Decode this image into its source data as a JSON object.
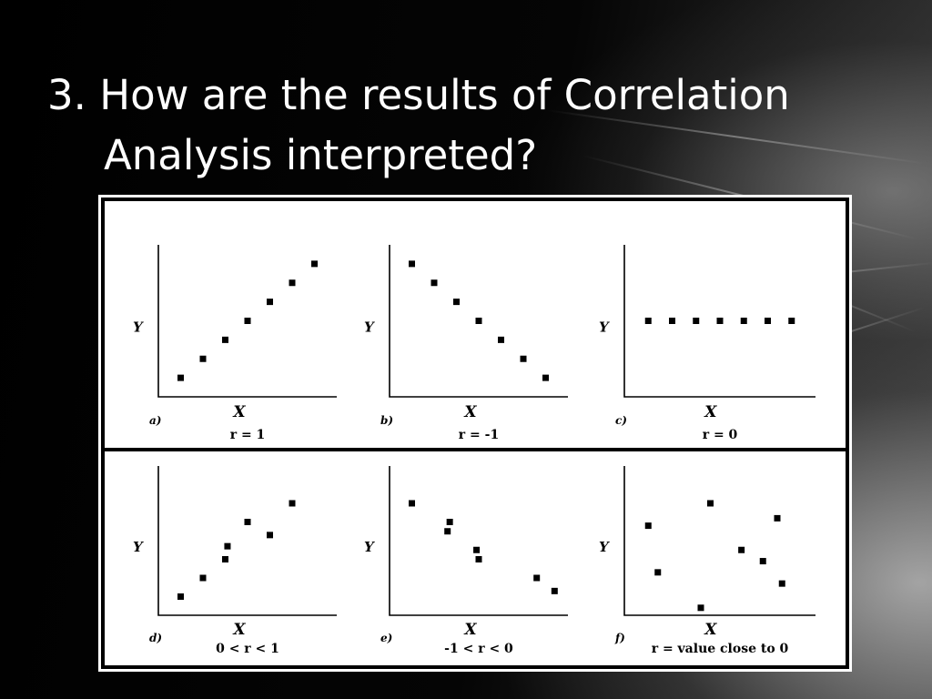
{
  "slide": {
    "title_line1": "3. How are the results of Correlation",
    "title_line2": "Analysis interpreted?"
  },
  "chart_data": [
    {
      "type": "scatter",
      "panel": "a)",
      "caption": "r = 1",
      "xlabel": "X",
      "ylabel": "Y",
      "x": [
        1,
        2,
        3,
        4,
        5,
        6,
        7
      ],
      "y": [
        1,
        2,
        3,
        4,
        5,
        6,
        7
      ]
    },
    {
      "type": "scatter",
      "panel": "b)",
      "caption": "r = -1",
      "xlabel": "X",
      "ylabel": "Y",
      "x": [
        1,
        2,
        3,
        4,
        5,
        6,
        7
      ],
      "y": [
        7,
        6,
        5,
        4,
        3,
        2,
        1
      ]
    },
    {
      "type": "scatter",
      "panel": "c)",
      "caption": "r = 0",
      "xlabel": "X",
      "ylabel": "Y",
      "x": [
        1,
        2,
        3,
        4,
        5,
        6,
        7
      ],
      "y": [
        4,
        4,
        4,
        4,
        4,
        4,
        4
      ]
    },
    {
      "type": "scatter",
      "panel": "d)",
      "caption": "0 < r < 1",
      "xlabel": "X",
      "ylabel": "Y",
      "x": [
        1,
        2,
        3,
        3.1,
        4,
        5,
        6
      ],
      "y": [
        1,
        2,
        3,
        3.7,
        5,
        4.3,
        6
      ]
    },
    {
      "type": "scatter",
      "panel": "e)",
      "caption": "-1 < r < 0",
      "xlabel": "X",
      "ylabel": "Y",
      "x": [
        1,
        2.7,
        2.6,
        3.9,
        4,
        6.6,
        7.4
      ],
      "y": [
        6,
        5,
        4.5,
        3.5,
        3,
        2,
        1.3
      ]
    },
    {
      "type": "scatter",
      "panel": "f)",
      "caption": "r = value close to 0",
      "xlabel": "X",
      "ylabel": "Y",
      "x": [
        1,
        1.4,
        3.2,
        3.6,
        4.9,
        5.8,
        6.4,
        6.6
      ],
      "y": [
        4.8,
        2.3,
        0.4,
        6,
        3.5,
        2.9,
        5.2,
        1.7
      ]
    }
  ]
}
